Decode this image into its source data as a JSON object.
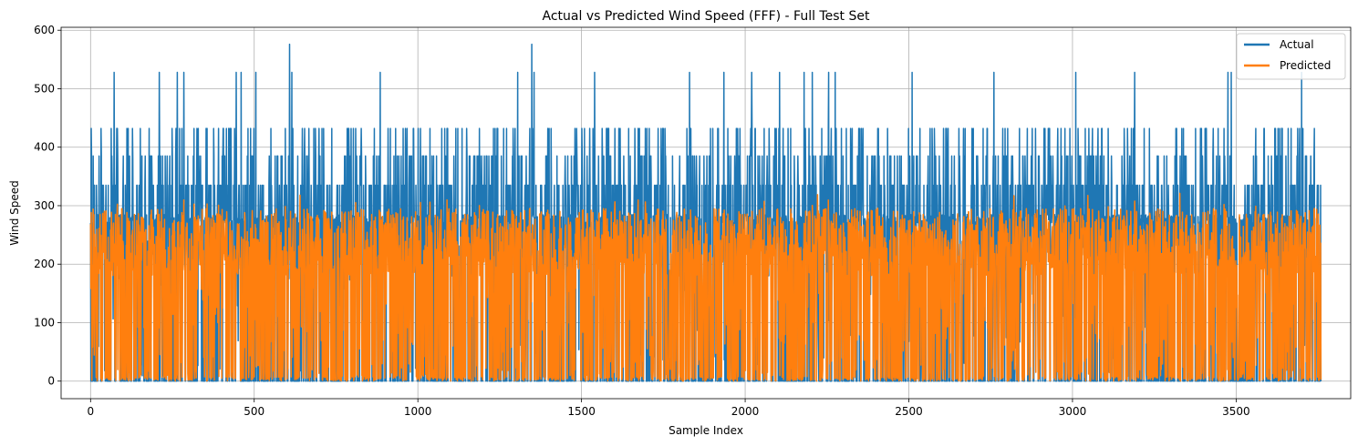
{
  "chart_data": {
    "type": "line",
    "title": "Actual vs Predicted Wind Speed (FFF) - Full Test Set",
    "xlabel": "Sample Index",
    "ylabel": "Wind Speed",
    "xlim": [
      -90,
      3850
    ],
    "ylim": [
      -30,
      605
    ],
    "xticks": [
      0,
      500,
      1000,
      1500,
      2000,
      2500,
      3000,
      3500
    ],
    "yticks": [
      0,
      100,
      200,
      300,
      400,
      500,
      600
    ],
    "grid": true,
    "legend": "top-right",
    "n_samples": 3760,
    "series": [
      {
        "name": "Actual",
        "color": "#1f77b4",
        "baseline_level": 285,
        "spike_levels": [
          335,
          385,
          432,
          528,
          576
        ],
        "peaks": [
          {
            "x": 72,
            "y": 528
          },
          {
            "x": 210,
            "y": 528
          },
          {
            "x": 265,
            "y": 528
          },
          {
            "x": 285,
            "y": 528
          },
          {
            "x": 445,
            "y": 528
          },
          {
            "x": 460,
            "y": 528
          },
          {
            "x": 505,
            "y": 528
          },
          {
            "x": 608,
            "y": 576
          },
          {
            "x": 615,
            "y": 528
          },
          {
            "x": 885,
            "y": 528
          },
          {
            "x": 1305,
            "y": 528
          },
          {
            "x": 1348,
            "y": 576
          },
          {
            "x": 1355,
            "y": 528
          },
          {
            "x": 1540,
            "y": 528
          },
          {
            "x": 1830,
            "y": 528
          },
          {
            "x": 1935,
            "y": 528
          },
          {
            "x": 2020,
            "y": 528
          },
          {
            "x": 2105,
            "y": 528
          },
          {
            "x": 2180,
            "y": 528
          },
          {
            "x": 2205,
            "y": 528
          },
          {
            "x": 2255,
            "y": 528
          },
          {
            "x": 2275,
            "y": 528
          },
          {
            "x": 2510,
            "y": 528
          },
          {
            "x": 2760,
            "y": 528
          },
          {
            "x": 3010,
            "y": 528
          },
          {
            "x": 3190,
            "y": 528
          },
          {
            "x": 3475,
            "y": 528
          },
          {
            "x": 3485,
            "y": 528
          },
          {
            "x": 3700,
            "y": 528
          }
        ]
      },
      {
        "name": "Predicted",
        "color": "#ff7f0e",
        "typical_upper": 285,
        "max": 325
      }
    ]
  }
}
